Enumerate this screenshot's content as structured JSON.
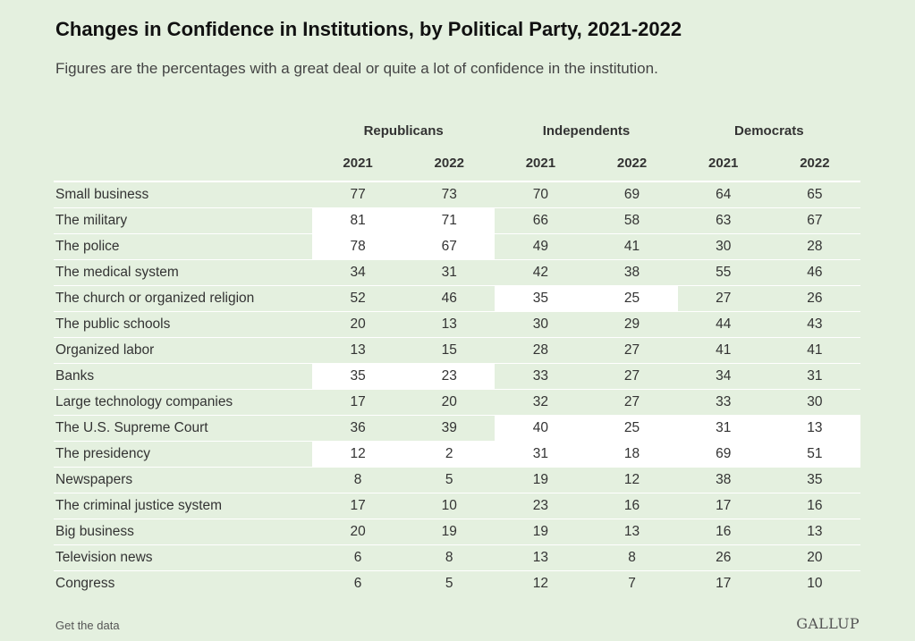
{
  "title": "Changes in Confidence in Institutions, by Political Party, 2021-2022",
  "subtitle": "Figures are the percentages with a great deal or quite a lot of confidence in the institution.",
  "footer": {
    "link": "Get the data",
    "logo": "GALLUP"
  },
  "chart_data": {
    "type": "table",
    "title": "Changes in Confidence in Institutions, by Political Party, 2021-2022",
    "subtitle": "Figures are the percentages with a great deal or quite a lot of confidence in the institution.",
    "parties": [
      "Republicans",
      "Independents",
      "Democrats"
    ],
    "years": [
      "2021",
      "2022"
    ],
    "columns": [
      "Republicans 2021",
      "Republicans 2022",
      "Independents 2021",
      "Independents 2022",
      "Democrats 2021",
      "Democrats 2022"
    ],
    "highlight_color": "#ffffff",
    "rows": [
      {
        "label": "Small business",
        "values": [
          77,
          73,
          70,
          69,
          64,
          65
        ],
        "highlight": []
      },
      {
        "label": "The military",
        "values": [
          81,
          71,
          66,
          58,
          63,
          67
        ],
        "highlight": [
          "Republicans"
        ]
      },
      {
        "label": "The police",
        "values": [
          78,
          67,
          49,
          41,
          30,
          28
        ],
        "highlight": [
          "Republicans"
        ]
      },
      {
        "label": "The medical system",
        "values": [
          34,
          31,
          42,
          38,
          55,
          46
        ],
        "highlight": []
      },
      {
        "label": "The church or organized religion",
        "values": [
          52,
          46,
          35,
          25,
          27,
          26
        ],
        "highlight": [
          "Independents"
        ]
      },
      {
        "label": "The public schools",
        "values": [
          20,
          13,
          30,
          29,
          44,
          43
        ],
        "highlight": []
      },
      {
        "label": "Organized labor",
        "values": [
          13,
          15,
          28,
          27,
          41,
          41
        ],
        "highlight": []
      },
      {
        "label": "Banks",
        "values": [
          35,
          23,
          33,
          27,
          34,
          31
        ],
        "highlight": [
          "Republicans"
        ]
      },
      {
        "label": "Large technology companies",
        "values": [
          17,
          20,
          32,
          27,
          33,
          30
        ],
        "highlight": []
      },
      {
        "label": "The U.S. Supreme Court",
        "values": [
          36,
          39,
          40,
          25,
          31,
          13
        ],
        "highlight": [
          "Independents",
          "Democrats"
        ]
      },
      {
        "label": "The presidency",
        "values": [
          12,
          2,
          31,
          18,
          69,
          51
        ],
        "highlight": [
          "Republicans",
          "Independents",
          "Democrats"
        ]
      },
      {
        "label": "Newspapers",
        "values": [
          8,
          5,
          19,
          12,
          38,
          35
        ],
        "highlight": []
      },
      {
        "label": "The criminal justice system",
        "values": [
          17,
          10,
          23,
          16,
          17,
          16
        ],
        "highlight": []
      },
      {
        "label": "Big business",
        "values": [
          20,
          19,
          19,
          13,
          16,
          13
        ],
        "highlight": []
      },
      {
        "label": "Television news",
        "values": [
          6,
          8,
          13,
          8,
          26,
          20
        ],
        "highlight": []
      },
      {
        "label": "Congress",
        "values": [
          6,
          5,
          12,
          7,
          17,
          10
        ],
        "highlight": []
      }
    ]
  }
}
